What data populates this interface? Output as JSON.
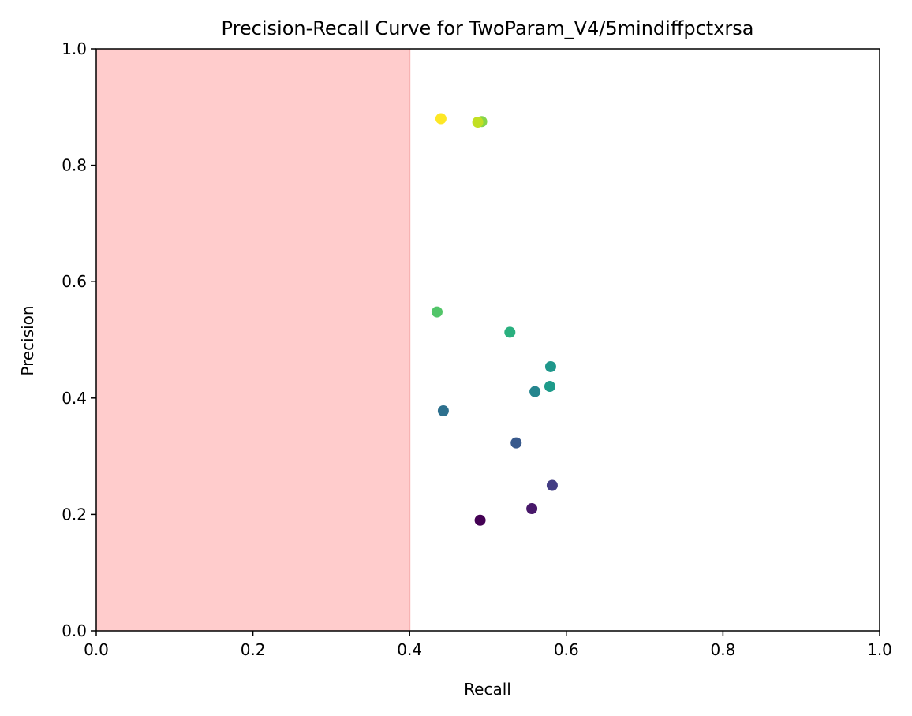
{
  "chart_data": {
    "type": "scatter",
    "title": "Precision-Recall Curve for TwoParam_V4/5mindiffpctxrsa",
    "xlabel": "Recall",
    "ylabel": "Precision",
    "xlim": [
      0.0,
      1.0
    ],
    "ylim": [
      0.0,
      1.0
    ],
    "x_ticks": [
      "0.0",
      "0.2",
      "0.4",
      "0.6",
      "0.8",
      "1.0"
    ],
    "y_ticks": [
      "0.0",
      "0.2",
      "0.4",
      "0.6",
      "0.8",
      "1.0"
    ],
    "grid": false,
    "legend": "none",
    "colormap": "viridis",
    "shaded_region": {
      "x_range": [
        0.0,
        0.4
      ],
      "color": "#ffcccc"
    },
    "points": [
      {
        "x": 0.49,
        "y": 0.19,
        "color": "#440154"
      },
      {
        "x": 0.556,
        "y": 0.21,
        "color": "#48186a"
      },
      {
        "x": 0.582,
        "y": 0.25,
        "color": "#433d84"
      },
      {
        "x": 0.536,
        "y": 0.323,
        "color": "#38598c"
      },
      {
        "x": 0.443,
        "y": 0.378,
        "color": "#2d708e"
      },
      {
        "x": 0.56,
        "y": 0.411,
        "color": "#25858e"
      },
      {
        "x": 0.579,
        "y": 0.42,
        "color": "#1e9b8a"
      },
      {
        "x": 0.58,
        "y": 0.454,
        "color": "#1f978b"
      },
      {
        "x": 0.528,
        "y": 0.513,
        "color": "#2ab07f"
      },
      {
        "x": 0.435,
        "y": 0.548,
        "color": "#52c569"
      },
      {
        "x": 0.492,
        "y": 0.875,
        "color": "#86d549"
      },
      {
        "x": 0.487,
        "y": 0.874,
        "color": "#c2df23"
      },
      {
        "x": 0.44,
        "y": 0.88,
        "color": "#fde725"
      }
    ]
  }
}
